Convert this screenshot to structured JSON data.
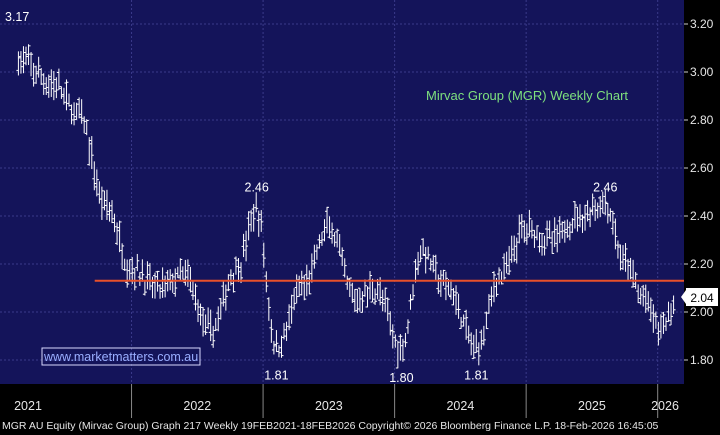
{
  "chart_data": {
    "type": "ohlc-bar",
    "title": "Mirvac Group (MGR) Weekly Chart",
    "watermark": "www.marketmatters.com.au",
    "x_ticks": [
      "2021",
      "2022",
      "2023",
      "2024",
      "2025",
      "2026"
    ],
    "y_ticks": [
      "1.80",
      "2.00",
      "2.20",
      "2.40",
      "2.60",
      "2.80",
      "3.00",
      "3.20"
    ],
    "ylim": [
      1.7,
      3.3
    ],
    "last_price": "2.04",
    "horizontal_line": {
      "value": 2.13,
      "color": "#e8502a"
    },
    "annotations": [
      {
        "text": "3.17",
        "x": 2021.05,
        "y": 3.17
      },
      {
        "text": "2.46",
        "x": 2022.95,
        "y": 2.46
      },
      {
        "text": "1.81",
        "x": 2023.1,
        "y": 1.81
      },
      {
        "text": "1.80",
        "x": 2024.05,
        "y": 1.8
      },
      {
        "text": "1.81",
        "x": 2024.62,
        "y": 1.81
      },
      {
        "text": "2.46",
        "x": 2025.6,
        "y": 2.46
      }
    ],
    "x": [
      2021.14,
      2021.4,
      2021.6,
      2021.8,
      2022.0,
      2022.2,
      2022.4,
      2022.6,
      2022.8,
      2022.95,
      2023.1,
      2023.3,
      2023.5,
      2023.7,
      2023.85,
      2024.05,
      2024.2,
      2024.4,
      2024.62,
      2024.8,
      2025.0,
      2025.2,
      2025.4,
      2025.6,
      2025.75,
      2025.9,
      2026.02,
      2026.13
    ],
    "y": [
      3.05,
      2.95,
      2.82,
      2.45,
      2.18,
      2.1,
      2.15,
      1.92,
      2.18,
      2.42,
      1.85,
      2.1,
      2.35,
      2.05,
      2.1,
      1.85,
      2.25,
      2.1,
      1.85,
      2.15,
      2.35,
      2.3,
      2.4,
      2.45,
      2.2,
      2.05,
      1.93,
      2.04
    ],
    "colors": {
      "background": "#14145a",
      "grid": "#3a3a8a",
      "bars": "#ffffff",
      "title": "#7ee07e",
      "watermark": "#9aaeff",
      "axis_bg": "#000000"
    }
  },
  "footer": {
    "text": "MGR AU Equity (Mirvac Group) Graph 217 Weekly 19FEB2021-18FEB2026  Copyright© 2026 Bloomberg Finance L.P.   18-Feb-2026 16:45:05"
  }
}
